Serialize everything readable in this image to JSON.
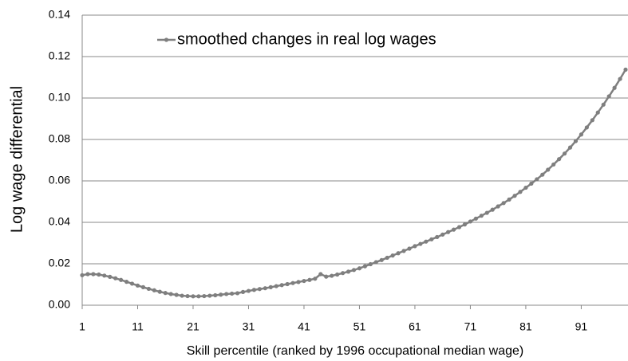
{
  "chart_data": {
    "type": "line",
    "y_label": "Log wage differential",
    "x_label": "Skill percentile (ranked by 1996 occupational  median wage)",
    "x": [
      1,
      2,
      3,
      4,
      5,
      6,
      7,
      8,
      9,
      10,
      11,
      12,
      13,
      14,
      15,
      16,
      17,
      18,
      19,
      20,
      21,
      22,
      23,
      24,
      25,
      26,
      27,
      28,
      29,
      30,
      31,
      32,
      33,
      34,
      35,
      36,
      37,
      38,
      39,
      40,
      41,
      42,
      43,
      44,
      45,
      46,
      47,
      48,
      49,
      50,
      51,
      52,
      53,
      54,
      55,
      56,
      57,
      58,
      59,
      60,
      61,
      62,
      63,
      64,
      65,
      66,
      67,
      68,
      69,
      70,
      71,
      72,
      73,
      74,
      75,
      76,
      77,
      78,
      79,
      80,
      81,
      82,
      83,
      84,
      85,
      86,
      87,
      88,
      89,
      90,
      91,
      92,
      93,
      94,
      95,
      96,
      97,
      98,
      99
    ],
    "series": [
      {
        "name": "smoothed changes in real log wages",
        "color": "#7f7f7f",
        "values": [
          0.0145,
          0.015,
          0.015,
          0.0148,
          0.0143,
          0.0137,
          0.013,
          0.0122,
          0.0113,
          0.0104,
          0.0095,
          0.0087,
          0.0079,
          0.0072,
          0.0065,
          0.0059,
          0.0054,
          0.005,
          0.0046,
          0.0044,
          0.0043,
          0.0043,
          0.0044,
          0.0046,
          0.0048,
          0.0051,
          0.0054,
          0.0056,
          0.0058,
          0.0064,
          0.0069,
          0.0074,
          0.0078,
          0.0082,
          0.0087,
          0.0092,
          0.0097,
          0.0102,
          0.0107,
          0.0112,
          0.0117,
          0.0122,
          0.0128,
          0.015,
          0.0138,
          0.0142,
          0.0148,
          0.0155,
          0.0162,
          0.017,
          0.0178,
          0.0188,
          0.0198,
          0.0208,
          0.0218,
          0.0229,
          0.024,
          0.0251,
          0.0262,
          0.0273,
          0.0285,
          0.0296,
          0.0307,
          0.0318,
          0.0329,
          0.0341,
          0.0353,
          0.0365,
          0.0377,
          0.039,
          0.0404,
          0.0418,
          0.0432,
          0.0446,
          0.0461,
          0.0477,
          0.0493,
          0.051,
          0.0528,
          0.0547,
          0.0567,
          0.0587,
          0.0608,
          0.063,
          0.0654,
          0.0679,
          0.0705,
          0.0732,
          0.0761,
          0.0792,
          0.0824,
          0.0858,
          0.0893,
          0.093,
          0.0968,
          0.1008,
          0.1049,
          0.1092,
          0.1137
        ]
      }
    ],
    "xlim": [
      1,
      99
    ],
    "xticks": [
      1,
      11,
      21,
      31,
      41,
      51,
      61,
      71,
      81,
      91
    ],
    "ylim": [
      0,
      0.14
    ],
    "yticks": [
      {
        "value": 0,
        "label": "0.00"
      },
      {
        "value": 0.02,
        "label": "0.02"
      },
      {
        "value": 0.04,
        "label": "0.04"
      },
      {
        "value": 0.06,
        "label": "0.06"
      },
      {
        "value": 0.08,
        "label": "0.08"
      },
      {
        "value": 0.1,
        "label": "0.10"
      },
      {
        "value": 0.12,
        "label": "0.12"
      },
      {
        "value": 0.14,
        "label": "0.14"
      }
    ],
    "grid": true
  }
}
